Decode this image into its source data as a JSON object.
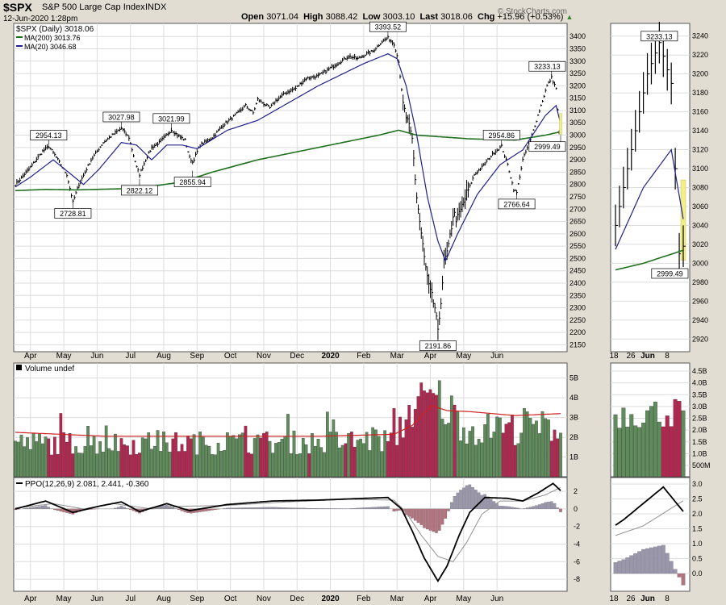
{
  "header": {
    "symbol": "$SPX",
    "name": "S&P 500 Large Cap Index",
    "exchange": "INDX",
    "date": "12-Jun-2020 1:28pm",
    "open_label": "Open",
    "open": "3071.04",
    "high_label": "High",
    "high": "3088.42",
    "low_label": "Low",
    "low": "3003.10",
    "last_label": "Last",
    "last": "3018.06",
    "chg_label": "Chg",
    "chg": "+15.96 (+0.53%)",
    "watermark": "© StockCharts.com"
  },
  "colors": {
    "background": "#e2ddd2",
    "panel": "#ffffff",
    "grid": "#dcdcdc",
    "price": "#000000",
    "ma200": "#207020",
    "ma20": "#20208c",
    "vol_up": "#5e8c5a",
    "vol_down": "#b52550",
    "vol_ma": "#d02020",
    "ppo": "#000000",
    "ppo_signal": "#909090",
    "hist_pos": "#9a96ac",
    "hist_neg": "#b4727e",
    "highlight": "#f2ee88"
  },
  "chart_data": [
    {
      "type": "line",
      "panel": "price",
      "title": "$SPX (Daily) 3018.06",
      "legend": [
        "$SPX (Daily) 3018.06",
        "MA(200) 3013.76",
        "MA(20) 3046.68"
      ],
      "legend_position": "top-left",
      "y_ticks": [
        2150,
        2200,
        2250,
        2300,
        2350,
        2400,
        2450,
        2500,
        2550,
        2600,
        2650,
        2700,
        2750,
        2800,
        2850,
        2900,
        2950,
        3000,
        3050,
        3100,
        3150,
        3200,
        3250,
        3300,
        3350,
        3400
      ],
      "ylim": [
        2135,
        3440
      ],
      "x_months": [
        "Apr",
        "May",
        "Jun",
        "Jul",
        "Aug",
        "Sep",
        "Oct",
        "Nov",
        "Dec",
        "2020",
        "Feb",
        "Mar",
        "Apr",
        "May",
        "Jun"
      ],
      "grid": true,
      "close_keypoints": [
        [
          0,
          2800
        ],
        [
          3,
          2820
        ],
        [
          10,
          2870
        ],
        [
          18,
          2935
        ],
        [
          22,
          2954.13
        ],
        [
          26,
          2920
        ],
        [
          34,
          2840
        ],
        [
          38,
          2728.81
        ],
        [
          42,
          2800
        ],
        [
          50,
          2900
        ],
        [
          58,
          2970
        ],
        [
          64,
          3000
        ],
        [
          70,
          3027.98
        ],
        [
          75,
          2990
        ],
        [
          80,
          2870
        ],
        [
          82,
          2840
        ],
        [
          86,
          2900
        ],
        [
          90,
          2950
        ],
        [
          95,
          2970
        ],
        [
          100,
          3000
        ],
        [
          103,
          3021.99
        ],
        [
          107,
          3000
        ],
        [
          112,
          2980
        ],
        [
          115,
          2910
        ],
        [
          117,
          2890
        ],
        [
          122,
          2960
        ],
        [
          130,
          2990
        ],
        [
          137,
          3040
        ],
        [
          145,
          3080
        ],
        [
          152,
          3120
        ],
        [
          157,
          3090
        ],
        [
          160,
          3145
        ],
        [
          168,
          3110
        ],
        [
          172,
          3140
        ],
        [
          178,
          3170
        ],
        [
          185,
          3190
        ],
        [
          192,
          3230
        ],
        [
          200,
          3240
        ],
        [
          210,
          3280
        ],
        [
          220,
          3320
        ],
        [
          226,
          3310
        ],
        [
          232,
          3330
        ],
        [
          236,
          3340
        ],
        [
          242,
          3380
        ],
        [
          246,
          3393.52
        ],
        [
          250,
          3370
        ],
        [
          253,
          3300
        ],
        [
          256,
          3120
        ],
        [
          262,
          2980
        ],
        [
          265,
          2750
        ],
        [
          270,
          2500
        ],
        [
          273,
          2380
        ],
        [
          277,
          2300
        ],
        [
          279,
          2191.86
        ],
        [
          283,
          2480
        ],
        [
          286,
          2540
        ],
        [
          289,
          2680
        ],
        [
          292,
          2660
        ],
        [
          298,
          2760
        ],
        [
          303,
          2840
        ],
        [
          308,
          2870
        ],
        [
          312,
          2900
        ],
        [
          316,
          2930
        ],
        [
          321,
          2954.86
        ],
        [
          325,
          2880
        ],
        [
          329,
          2780
        ],
        [
          331,
          2766.64
        ],
        [
          335,
          2900
        ],
        [
          340,
          2980
        ],
        [
          344,
          3060
        ],
        [
          348,
          3140
        ],
        [
          351,
          3200
        ],
        [
          354,
          3233.13
        ],
        [
          357,
          3190
        ],
        [
          359,
          3010
        ],
        [
          360,
          3018.06
        ]
      ],
      "ma200_keypoints": [
        [
          0,
          2775
        ],
        [
          20,
          2780
        ],
        [
          40,
          2778
        ],
        [
          80,
          2784
        ],
        [
          110,
          2810
        ],
        [
          130,
          2850
        ],
        [
          160,
          2900
        ],
        [
          200,
          2950
        ],
        [
          240,
          3000
        ],
        [
          253,
          3020
        ],
        [
          265,
          3000
        ],
        [
          300,
          2985
        ],
        [
          330,
          2980
        ],
        [
          350,
          3000
        ],
        [
          360,
          3013.76
        ]
      ],
      "ma20_keypoints": [
        [
          0,
          2790
        ],
        [
          10,
          2830
        ],
        [
          25,
          2900
        ],
        [
          35,
          2850
        ],
        [
          45,
          2800
        ],
        [
          55,
          2860
        ],
        [
          70,
          2970
        ],
        [
          80,
          2960
        ],
        [
          90,
          2900
        ],
        [
          100,
          2960
        ],
        [
          110,
          2960
        ],
        [
          120,
          2945
        ],
        [
          140,
          3020
        ],
        [
          160,
          3060
        ],
        [
          180,
          3130
        ],
        [
          200,
          3200
        ],
        [
          230,
          3290
        ],
        [
          246,
          3330
        ],
        [
          252,
          3310
        ],
        [
          258,
          3200
        ],
        [
          265,
          3000
        ],
        [
          272,
          2750
        ],
        [
          279,
          2570
        ],
        [
          284,
          2490
        ],
        [
          292,
          2600
        ],
        [
          305,
          2760
        ],
        [
          320,
          2880
        ],
        [
          335,
          2940
        ],
        [
          350,
          3080
        ],
        [
          357,
          3120
        ],
        [
          360,
          3046.68
        ]
      ],
      "annotations": [
        {
          "label": "2954.13",
          "x": 22,
          "y": 2954.13,
          "pos": "above"
        },
        {
          "label": "2728.81",
          "x": 38,
          "y": 2728.81,
          "pos": "below"
        },
        {
          "label": "3027.98",
          "x": 70,
          "y": 3027.98,
          "pos": "above"
        },
        {
          "label": "2822.12",
          "x": 82,
          "y": 2822.12,
          "pos": "below"
        },
        {
          "label": "3021.99",
          "x": 103,
          "y": 3021.99,
          "pos": "above"
        },
        {
          "label": "2855.94",
          "x": 117,
          "y": 2855.94,
          "pos": "below"
        },
        {
          "label": "3393.52",
          "x": 246,
          "y": 3393.52,
          "pos": "above"
        },
        {
          "label": "2191.86",
          "x": 279,
          "y": 2191.86,
          "pos": "below"
        },
        {
          "label": "2954.86",
          "x": 321,
          "y": 2954.86,
          "pos": "above"
        },
        {
          "label": "2766.64",
          "x": 331,
          "y": 2766.64,
          "pos": "below"
        },
        {
          "label": "3233.13",
          "x": 354,
          "y": 3233.13,
          "pos": "above"
        },
        {
          "label": "2999.49",
          "x": 360,
          "y": 2999.49,
          "pos": "below"
        }
      ]
    },
    {
      "type": "bar",
      "panel": "volume",
      "title": "Volume undef",
      "y_ticks": [
        1,
        2,
        3,
        4,
        5
      ],
      "y_tick_labels": [
        "1B",
        "2B",
        "3B",
        "4B",
        "5B"
      ],
      "ylim": [
        0,
        5.6
      ],
      "volume_base_keypoints": [
        [
          0,
          2.0
        ],
        [
          60,
          2.0
        ],
        [
          200,
          2.05
        ],
        [
          250,
          2.2
        ],
        [
          262,
          4.2
        ],
        [
          279,
          4.6
        ],
        [
          300,
          2.8
        ],
        [
          330,
          2.9
        ],
        [
          360,
          3.0
        ]
      ],
      "volume_ma_keypoints": [
        [
          0,
          2.25
        ],
        [
          60,
          2.05
        ],
        [
          200,
          2.05
        ],
        [
          250,
          2.15
        ],
        [
          262,
          2.6
        ],
        [
          275,
          3.6
        ],
        [
          285,
          3.35
        ],
        [
          300,
          3.3
        ],
        [
          330,
          3.1
        ],
        [
          360,
          3.2
        ]
      ]
    },
    {
      "type": "line",
      "panel": "ppo",
      "title": "PPO(12,26,9) 2.081, 2.441, -0.360",
      "y_ticks": [
        -8,
        -6,
        -4,
        -2,
        0,
        2
      ],
      "ylim": [
        -9,
        3.2
      ],
      "ppo_keypoints": [
        [
          0,
          0
        ],
        [
          20,
          0.9
        ],
        [
          38,
          -0.4
        ],
        [
          55,
          0.3
        ],
        [
          70,
          0.8
        ],
        [
          82,
          -0.3
        ],
        [
          100,
          0.6
        ],
        [
          115,
          -0.2
        ],
        [
          140,
          0.5
        ],
        [
          170,
          0.9
        ],
        [
          200,
          1.0
        ],
        [
          230,
          1.2
        ],
        [
          246,
          1.3
        ],
        [
          255,
          0
        ],
        [
          262,
          -2.5
        ],
        [
          270,
          -5.6
        ],
        [
          279,
          -8.2
        ],
        [
          285,
          -6.5
        ],
        [
          293,
          -3
        ],
        [
          300,
          -0.4
        ],
        [
          310,
          1.3
        ],
        [
          325,
          1.2
        ],
        [
          335,
          0.9
        ],
        [
          345,
          1.8
        ],
        [
          355,
          2.9
        ],
        [
          360,
          2.08
        ]
      ],
      "signal_keypoints": [
        [
          0,
          0.1
        ],
        [
          25,
          0.6
        ],
        [
          45,
          0
        ],
        [
          65,
          0.6
        ],
        [
          90,
          0
        ],
        [
          110,
          0.3
        ],
        [
          140,
          0.4
        ],
        [
          180,
          0.8
        ],
        [
          220,
          1.1
        ],
        [
          250,
          1.0
        ],
        [
          258,
          -0.4
        ],
        [
          268,
          -3
        ],
        [
          279,
          -5.4
        ],
        [
          289,
          -6
        ],
        [
          298,
          -3.8
        ],
        [
          308,
          -0.6
        ],
        [
          320,
          0.9
        ],
        [
          335,
          0.9
        ],
        [
          350,
          1.6
        ],
        [
          360,
          2.44
        ]
      ]
    },
    {
      "type": "line",
      "panel": "zoom",
      "y_ticks": [
        2920,
        2940,
        2960,
        2980,
        3000,
        3020,
        3040,
        3060,
        3080,
        3100,
        3120,
        3140,
        3160,
        3180,
        3200,
        3220,
        3240
      ],
      "ylim": [
        2910,
        3250
      ],
      "x_labels": [
        "18",
        "26",
        "Jun",
        "8"
      ],
      "annotations": [
        {
          "label": "3233.13",
          "y": 3233.13,
          "pos": "above"
        },
        {
          "label": "2999.49",
          "y": 2999.49,
          "pos": "below"
        }
      ],
      "volume_ticks": [
        "500M",
        "1.0B",
        "1.5B",
        "2.0B",
        "2.5B",
        "3.0B",
        "3.5B",
        "4.0B",
        "4.5B"
      ],
      "ppo_ticks": [
        "0.0",
        "0.5",
        "1.0",
        "1.5",
        "2.0",
        "2.5",
        "3.0"
      ]
    }
  ]
}
